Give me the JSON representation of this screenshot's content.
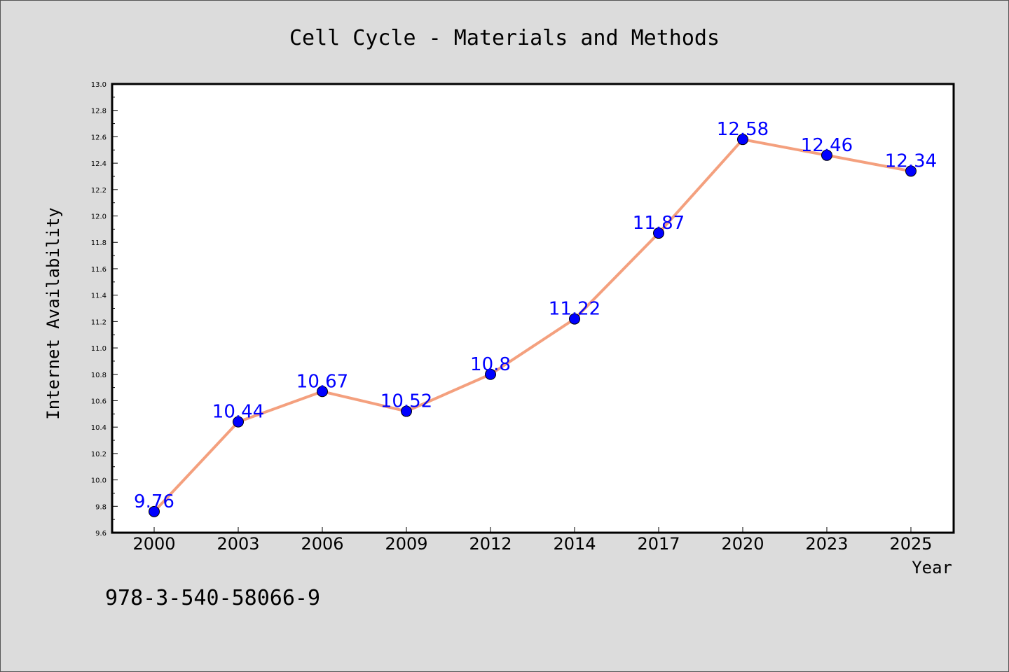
{
  "chart_data": {
    "type": "line",
    "title": "Cell Cycle - Materials and Methods",
    "xlabel": "Year",
    "ylabel": "Internet Availability",
    "categories": [
      "2000",
      "2003",
      "2006",
      "2009",
      "2012",
      "2014",
      "2017",
      "2020",
      "2023",
      "2025"
    ],
    "values": [
      9.76,
      10.44,
      10.67,
      10.52,
      10.8,
      11.22,
      11.87,
      12.58,
      12.46,
      12.34
    ],
    "data_labels": [
      "9.76",
      "10.44",
      "10.67",
      "10.52",
      "10.8",
      "11.22",
      "11.87",
      "12.58",
      "12.46",
      "12.34"
    ],
    "ylim": [
      9.6,
      13.0
    ],
    "yticks": [
      "9.6",
      "9.8",
      "10.0",
      "10.2",
      "10.4",
      "10.6",
      "10.8",
      "11.0",
      "11.2",
      "11.4",
      "11.6",
      "11.8",
      "12.0",
      "12.2",
      "12.4",
      "12.6",
      "12.8",
      "13.0"
    ],
    "grid": false,
    "line_color": "#f4a07e",
    "marker_color": "#0000ff",
    "label_color": "#0000ff"
  },
  "footnote": "978-3-540-58066-9"
}
